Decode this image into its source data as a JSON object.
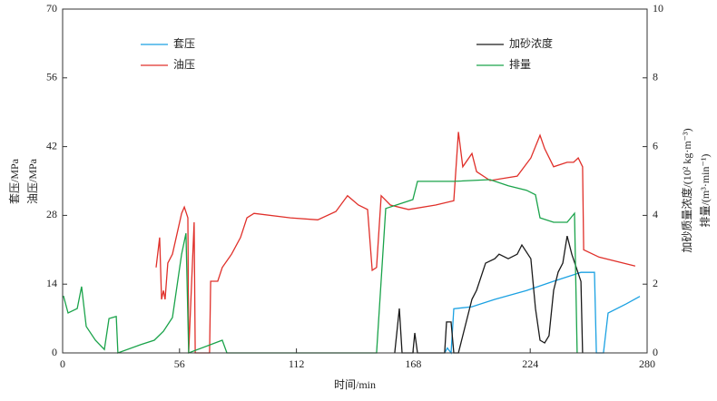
{
  "chart_data": {
    "type": "line",
    "xlabel": "时间/min",
    "ylabels": [
      "套压/MPa",
      "油压/MPa"
    ],
    "y2labels": [
      "加砂质量浓度/(10² kg·m⁻³)",
      "排量/(m³·min⁻¹)"
    ],
    "xlim": [
      0,
      280
    ],
    "xticks": [
      0,
      56,
      112,
      168,
      224,
      280
    ],
    "ylim": [
      0,
      70
    ],
    "yticks": [
      0,
      14,
      28,
      42,
      56,
      70
    ],
    "y2lim": [
      0,
      10
    ],
    "y2ticks": [
      0,
      2,
      4,
      6,
      8,
      10
    ],
    "series": [
      {
        "name": "套压",
        "color": "#1ba1e2",
        "axis": "y",
        "x": [
          183,
          184.3,
          186.1,
          187.4,
          196.1,
          207,
          222.2,
          235.2,
          248.3,
          254.8,
          255.7,
          259.1,
          261.3,
          270,
          276.5
        ],
        "values": [
          0,
          1,
          0,
          9,
          9.4,
          10.9,
          12.7,
          14.6,
          16.4,
          16.4,
          0,
          0,
          8.1,
          10,
          11.5
        ]
      },
      {
        "name": "油压",
        "color": "#e0302a",
        "axis": "y",
        "x": [
          44.8,
          46.5,
          47.4,
          48.3,
          49.1,
          50.4,
          52.6,
          57,
          58.3,
          60,
          60.4,
          63,
          63.5,
          70.4,
          70.9,
          74.3,
          76.5,
          80.9,
          85.2,
          88.3,
          91.7,
          109.1,
          122.2,
          130.9,
          136.5,
          141.7,
          146.1,
          148.3,
          150.4,
          152.6,
          157,
          165.7,
          178.7,
          187.4,
          189.6,
          191.7,
          196.1,
          198.3,
          204.8,
          217.8,
          224.3,
          228.7,
          230.9,
          235.2,
          241.7,
          244.8,
          247,
          249.1,
          249.6,
          257,
          274.3
        ],
        "values": [
          17.4,
          23.5,
          10.9,
          12.7,
          10.9,
          18.3,
          20.1,
          28.4,
          29.7,
          27.5,
          0,
          26.6,
          0,
          0,
          14.6,
          14.6,
          17.4,
          20.1,
          23.5,
          27.5,
          28.4,
          27.5,
          27.1,
          28.8,
          32,
          30.1,
          29.2,
          16.8,
          17.4,
          32,
          30.1,
          29.2,
          30.1,
          31,
          45,
          37.9,
          40.6,
          36.9,
          35.1,
          36,
          39.7,
          44.3,
          41.6,
          37.9,
          38.8,
          38.8,
          39.7,
          37.9,
          21,
          19.5,
          17.7
        ]
      },
      {
        "name": "加砂浓度",
        "color": "#1a1a1a",
        "axis": "y2",
        "x": [
          159.1,
          161.3,
          162.6,
          167.8,
          168.7,
          170,
          183,
          183.9,
          186.1,
          187.4,
          189.6,
          196.1,
          198.3,
          202.6,
          207,
          209.1,
          213.5,
          217.8,
          220,
          224.3,
          226.5,
          228.7,
          230.9,
          233,
          235.2,
          237.4,
          239.6,
          241.7,
          243.9,
          248.3,
          249.1
        ],
        "values": [
          0,
          1.29,
          0,
          0,
          0.58,
          0,
          0,
          0.9,
          0.9,
          0,
          0,
          1.56,
          1.82,
          2.61,
          2.74,
          2.87,
          2.74,
          2.87,
          3.14,
          2.74,
          1.29,
          0.37,
          0.29,
          0.5,
          1.82,
          2.35,
          2.61,
          3.4,
          2.87,
          2.08,
          0
        ]
      },
      {
        "name": "排量",
        "color": "#1aa34a",
        "axis": "y2",
        "x": [
          0.4,
          2.6,
          7,
          9.1,
          11.3,
          15.7,
          20,
          22.2,
          25.7,
          26.5,
          37.4,
          43.9,
          48.3,
          52.6,
          57,
          59.1,
          60.4,
          76.5,
          78.7,
          150.4,
          154.8,
          161.3,
          167.8,
          170,
          187.4,
          204.8,
          213.5,
          222.2,
          226.5,
          228.7,
          235.2,
          241.7,
          245.2,
          246.5
        ],
        "values": [
          1.66,
          1.16,
          1.29,
          1.93,
          0.77,
          0.37,
          0.1,
          1,
          1.06,
          0,
          0.24,
          0.37,
          0.63,
          1.03,
          2.87,
          3.48,
          0,
          0.37,
          0,
          0,
          4.2,
          4.33,
          4.46,
          4.99,
          4.99,
          5.04,
          4.86,
          4.73,
          4.6,
          3.93,
          3.8,
          3.8,
          4.06,
          0
        ]
      }
    ]
  }
}
